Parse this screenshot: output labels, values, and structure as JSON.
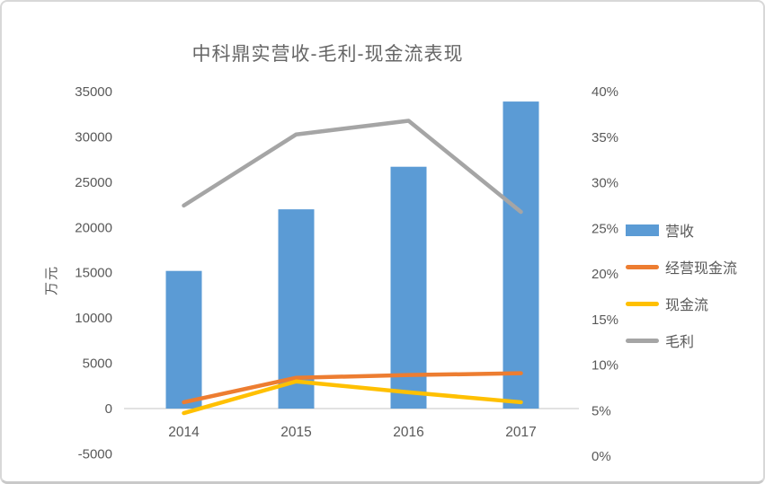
{
  "chart_data": {
    "type": "combo",
    "title": "中科鼎实营收-毛利-现金流表现",
    "categories": [
      "2014",
      "2015",
      "2016",
      "2017"
    ],
    "series": [
      {
        "name": "营收",
        "kind": "bar",
        "axis": "left",
        "color": "#5B9BD5",
        "values": [
          15200,
          22000,
          26700,
          33900
        ]
      },
      {
        "name": "经营现金流",
        "kind": "line",
        "axis": "left",
        "color": "#ED7D31",
        "values": [
          700,
          3400,
          3700,
          3900
        ]
      },
      {
        "name": "现金流",
        "kind": "line",
        "axis": "left",
        "color": "#FFC000",
        "values": [
          -500,
          3000,
          1800,
          700
        ]
      },
      {
        "name": "毛利",
        "kind": "line",
        "axis": "right",
        "color": "#A5A5A5",
        "values": [
          27.5,
          35.3,
          36.8,
          26.8
        ]
      }
    ],
    "left_axis": {
      "title": "万元",
      "min": -5000,
      "max": 35000,
      "step": 5000,
      "ticks": [
        "35000",
        "30000",
        "25000",
        "20000",
        "15000",
        "10000",
        "5000",
        "0",
        "-5000"
      ]
    },
    "right_axis": {
      "min": 0,
      "max": 40,
      "step": 5,
      "ticks": [
        "40%",
        "35%",
        "30%",
        "25%",
        "20%",
        "15%",
        "10%",
        "5%",
        "0%"
      ]
    },
    "legend_position": "right",
    "grid": false,
    "axis_line_color": "#D9D9D9",
    "text_color": "#595959"
  }
}
